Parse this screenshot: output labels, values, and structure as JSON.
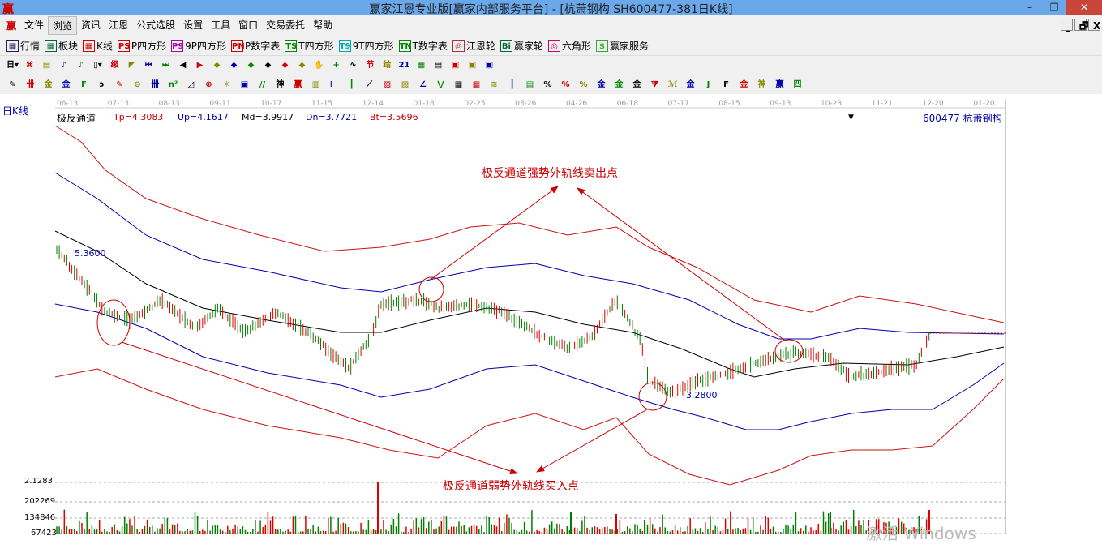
{
  "window": {
    "title": "赢家江恩专业版[赢家内部服务平台] - [杭萧钢构  SH600477-381日K线]",
    "logo": "赢",
    "min": "–",
    "max": "❐",
    "close": "✕"
  },
  "menu": [
    "文件",
    "浏览",
    "资讯",
    "江恩",
    "公式选股",
    "设置",
    "工具",
    "窗口",
    "交易委托",
    "帮助"
  ],
  "mdi": [
    "_",
    "🗗",
    "X"
  ],
  "toolbar1": [
    {
      "icon": "grid-table-icon",
      "label": "行情",
      "color": "#225"
    },
    {
      "icon": "blocks-icon",
      "label": "板块",
      "color": "#063"
    },
    {
      "icon": "candlestick-icon",
      "label": "K线",
      "color": "#c00"
    },
    {
      "icon": "PS",
      "label": "P四方形",
      "color": "#c00"
    },
    {
      "icon": "P9",
      "label": "9P四方形",
      "color": "#a0a"
    },
    {
      "icon": "PN",
      "label": "P数字表",
      "color": "#c00"
    },
    {
      "icon": "TS",
      "label": "T四方形",
      "color": "#080"
    },
    {
      "icon": "T9",
      "label": "9T四方形",
      "color": "#0aa"
    },
    {
      "icon": "TN",
      "label": "T数字表",
      "color": "#080"
    },
    {
      "icon": "◎",
      "label": "江恩轮",
      "color": "#a33"
    },
    {
      "icon": "Bi",
      "label": "赢家轮",
      "color": "#063"
    },
    {
      "icon": "◎",
      "label": "六角形",
      "color": "#c06"
    },
    {
      "icon": "$",
      "label": "赢家服务",
      "color": "#3a3"
    }
  ],
  "toolbar2": [
    "日▾",
    "⌘",
    "▤",
    "♪",
    "♪",
    "▯▾",
    "级",
    "◤",
    "⏮",
    "⏭",
    "◀",
    "▶",
    "◆",
    "◆",
    "◆",
    "◆",
    "◆",
    "◆",
    "✋",
    "+",
    "∿",
    "节",
    "给",
    "21",
    "▦",
    "▤",
    "▣",
    "▣",
    "▣"
  ],
  "toolbar3": [
    "✎",
    "卌",
    "金",
    "金",
    "F",
    "ɔ",
    "✎",
    "⊖",
    "卌",
    "n²",
    "◿",
    "⊕",
    "✳",
    "▣",
    "//",
    "神",
    "赢",
    "▥",
    "⊢",
    "┃",
    "⟋",
    "▨",
    "▨",
    "∠",
    "⋁",
    "▦",
    "▦",
    "≋",
    "┃",
    "▤",
    "%",
    "%",
    "%",
    "金",
    "金",
    "金",
    "⧩",
    "ℳ",
    "金",
    "J",
    "F",
    "金",
    "神",
    "赢",
    "四"
  ],
  "chart": {
    "period": "日K线",
    "dates": [
      "06-13",
      "07-13",
      "08-13",
      "09-11",
      "10-17",
      "11-15",
      "12-14",
      "01-18",
      "02-25",
      "03-26",
      "04-26",
      "06-18",
      "07-17",
      "08-15",
      "09-13",
      "10-23",
      "11-21",
      "12-20",
      "01-20"
    ],
    "indicator": {
      "name": "极反通道",
      "tp": "Tp=4.3083",
      "up": "Up=4.1617",
      "md": "Md=3.9917",
      "dn": "Dn=3.7721",
      "bt": "Bt=3.5696"
    },
    "stock": "600477  杭萧钢构",
    "high_label": "5.3600",
    "low_label": "3.2800",
    "annotation_sell": "极反通道强势外轨线卖出点",
    "annotation_buy": "极反通道弱势外轨线买入点",
    "volume_axis": [
      "2.1283",
      "202269",
      "134846",
      "67423"
    ],
    "watermark": "激活 Windows",
    "colors": {
      "up": "#e00000",
      "down": "#008000",
      "outer": "#cc1111",
      "inner": "#0000aa",
      "mid": "#000000"
    }
  }
}
